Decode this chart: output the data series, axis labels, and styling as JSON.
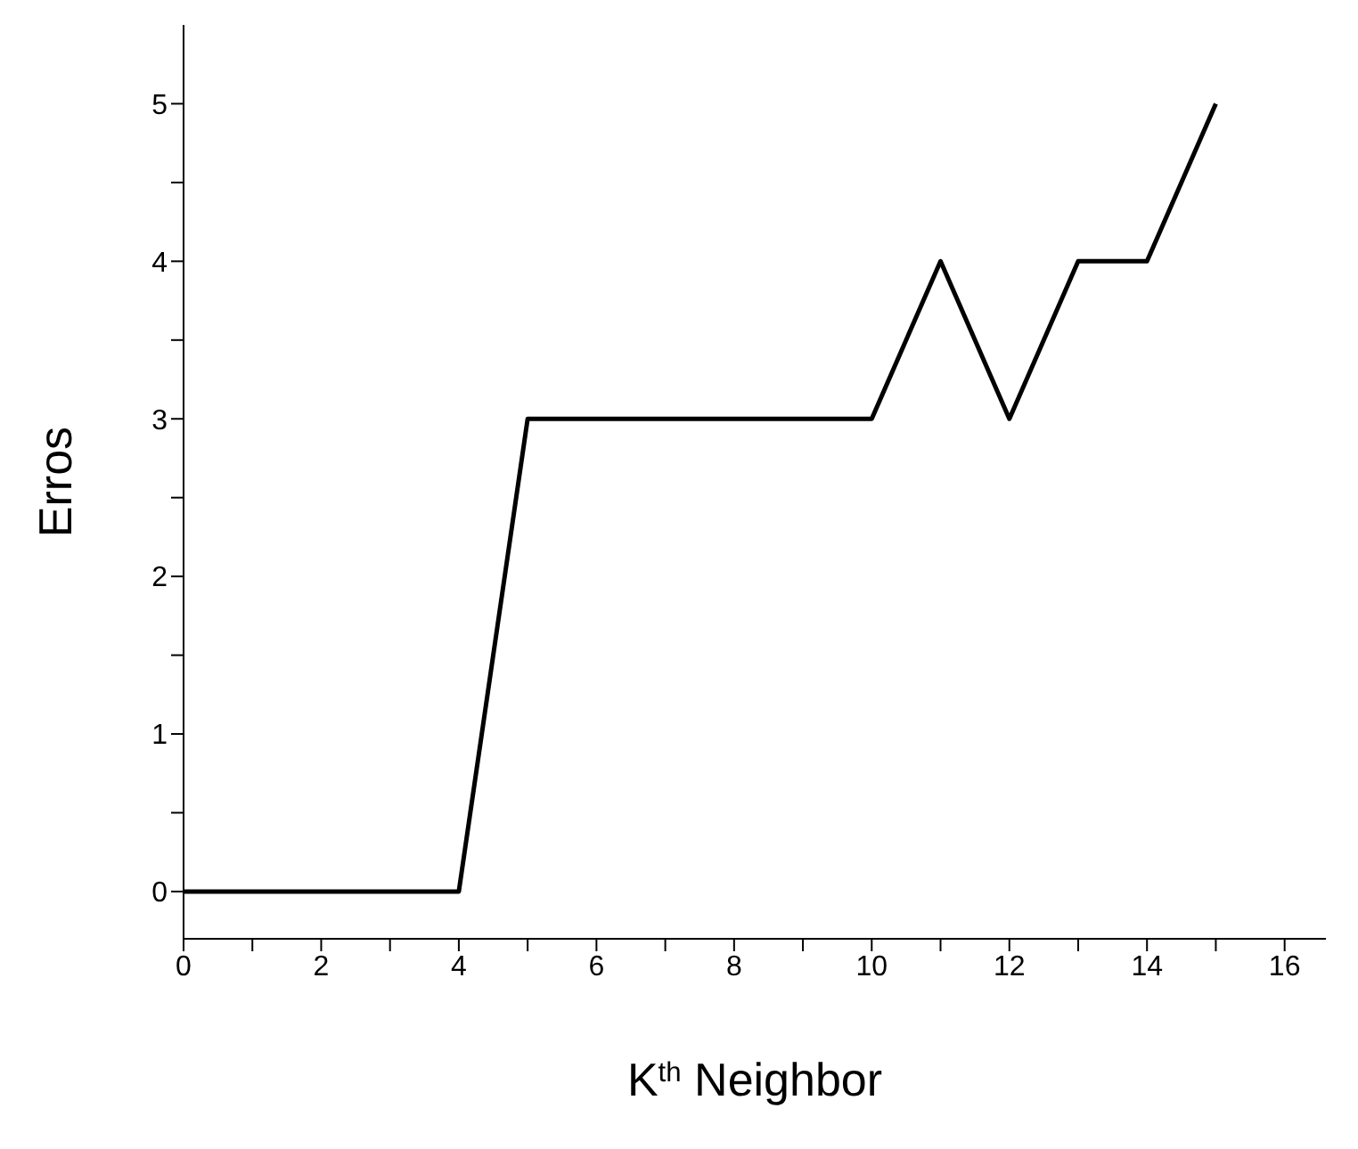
{
  "chart_data": {
    "type": "line",
    "xlabel": "K$^{th}$ Neighbor",
    "ylabel": "Erros",
    "x": [
      0,
      1,
      2,
      3,
      4,
      5,
      6,
      7,
      8,
      9,
      10,
      11,
      12,
      13,
      14,
      15
    ],
    "series": [
      {
        "color": "#000000",
        "values": [
          0,
          0,
          0,
          0,
          0,
          3,
          3,
          3,
          3,
          3,
          3,
          4,
          3,
          4,
          4,
          5
        ]
      }
    ],
    "xlim": [
      0,
      16.6
    ],
    "ylim": [
      -0.3,
      5.5
    ],
    "xticks": [
      0,
      {
        "value": 1,
        "label": null
      },
      2,
      {
        "value": 3,
        "label": null
      },
      4,
      {
        "value": 5,
        "label": null
      },
      6,
      {
        "value": 7,
        "label": null
      },
      8,
      {
        "value": 9,
        "label": null
      },
      10,
      {
        "value": 11,
        "label": null
      },
      12,
      {
        "value": 13,
        "label": null
      },
      14,
      {
        "value": 15,
        "label": null
      },
      16
    ],
    "yticks": [
      0,
      {
        "value": 0.5,
        "label": null
      },
      1,
      {
        "value": 1.5,
        "label": null
      },
      2,
      {
        "value": 2.5,
        "label": null
      },
      3,
      {
        "value": 3.5,
        "label": null
      },
      4,
      {
        "value": 4.5,
        "label": null
      },
      5
    ],
    "grid": false,
    "legend": false,
    "marker": "none",
    "line_style": "solid"
  }
}
